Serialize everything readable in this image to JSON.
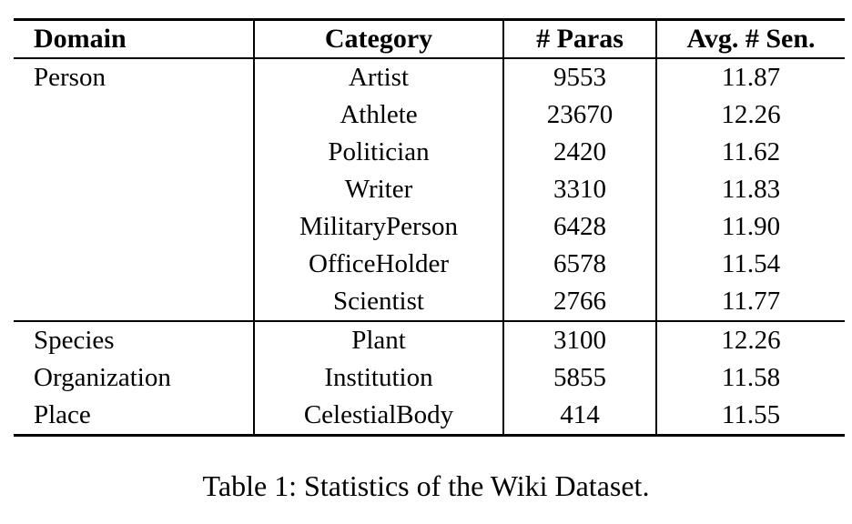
{
  "table": {
    "columns": [
      "Domain",
      "Category",
      "# Paras",
      "Avg. # Sen."
    ],
    "rows": [
      {
        "domain": "Person",
        "category": "Artist",
        "paras": "9553",
        "avg_sen": "11.87"
      },
      {
        "domain": "",
        "category": "Athlete",
        "paras": "23670",
        "avg_sen": "12.26"
      },
      {
        "domain": "",
        "category": "Politician",
        "paras": "2420",
        "avg_sen": "11.62"
      },
      {
        "domain": "",
        "category": "Writer",
        "paras": "3310",
        "avg_sen": "11.83"
      },
      {
        "domain": "",
        "category": "MilitaryPerson",
        "paras": "6428",
        "avg_sen": "11.90"
      },
      {
        "domain": "",
        "category": "OfficeHolder",
        "paras": "6578",
        "avg_sen": "11.54"
      },
      {
        "domain": "",
        "category": "Scientist",
        "paras": "2766",
        "avg_sen": "11.77"
      },
      {
        "domain": "Species",
        "category": "Plant",
        "paras": "3100",
        "avg_sen": "12.26"
      },
      {
        "domain": "Organization",
        "category": "Institution",
        "paras": "5855",
        "avg_sen": "11.58"
      },
      {
        "domain": "Place",
        "category": "CelestialBody",
        "paras": "414",
        "avg_sen": "11.55"
      }
    ]
  },
  "caption": "Table 1: Statistics of the Wiki Dataset.",
  "chart_data": {
    "type": "table",
    "title": "Table 1: Statistics of the Wiki Dataset.",
    "columns": [
      "Domain",
      "Category",
      "# Paras",
      "Avg. # Sen."
    ],
    "rows": [
      [
        "Person",
        "Artist",
        9553,
        11.87
      ],
      [
        "Person",
        "Athlete",
        23670,
        12.26
      ],
      [
        "Person",
        "Politician",
        2420,
        11.62
      ],
      [
        "Person",
        "Writer",
        3310,
        11.83
      ],
      [
        "Person",
        "MilitaryPerson",
        6428,
        11.9
      ],
      [
        "Person",
        "OfficeHolder",
        6578,
        11.54
      ],
      [
        "Person",
        "Scientist",
        2766,
        11.77
      ],
      [
        "Species",
        "Plant",
        3100,
        12.26
      ],
      [
        "Organization",
        "Institution",
        5855,
        11.58
      ],
      [
        "Place",
        "CelestialBody",
        414,
        11.55
      ]
    ]
  }
}
